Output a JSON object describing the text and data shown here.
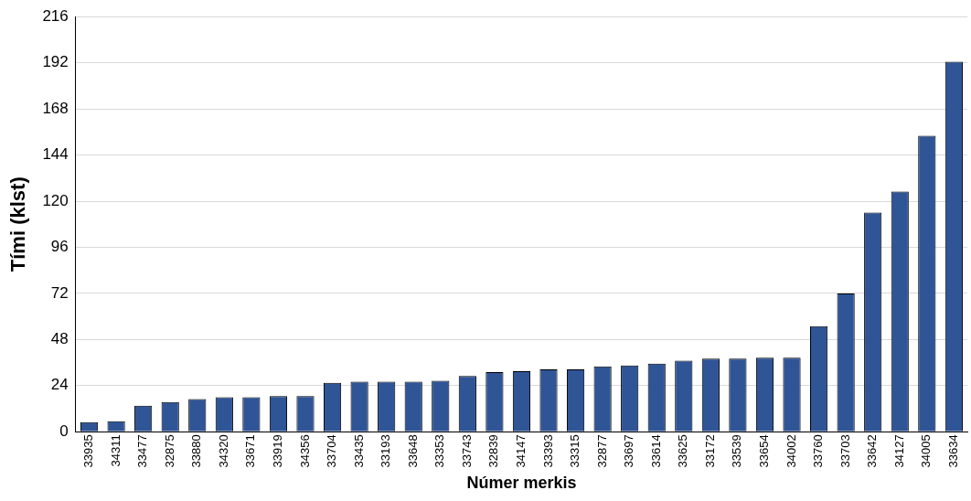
{
  "chart_data": {
    "type": "bar",
    "xlabel": "Númer merkis",
    "ylabel": "Tími (klst)",
    "categories": [
      "33935",
      "34311",
      "33477",
      "32875",
      "33880",
      "34320",
      "33671",
      "33919",
      "34356",
      "33704",
      "33435",
      "33193",
      "33648",
      "33353",
      "33743",
      "32839",
      "34147",
      "33393",
      "33315",
      "32877",
      "33697",
      "33614",
      "33625",
      "33172",
      "33539",
      "33654",
      "34002",
      "33760",
      "33703",
      "33642",
      "34127",
      "34005",
      "33634"
    ],
    "values": [
      5,
      5.5,
      13.5,
      15.5,
      17,
      18,
      18,
      18.5,
      18.5,
      25.5,
      26,
      26,
      26,
      26.5,
      29,
      31,
      31.5,
      32.5,
      32.5,
      34,
      34.5,
      35.5,
      37,
      38,
      38,
      38.5,
      38.5,
      55,
      72,
      114,
      125,
      154,
      192.5
    ],
    "color": "#2f5597",
    "ylim": [
      0,
      216
    ],
    "yticks": [
      0,
      24,
      48,
      72,
      96,
      120,
      144,
      168,
      192,
      216
    ],
    "grid": "y",
    "legend": false
  }
}
